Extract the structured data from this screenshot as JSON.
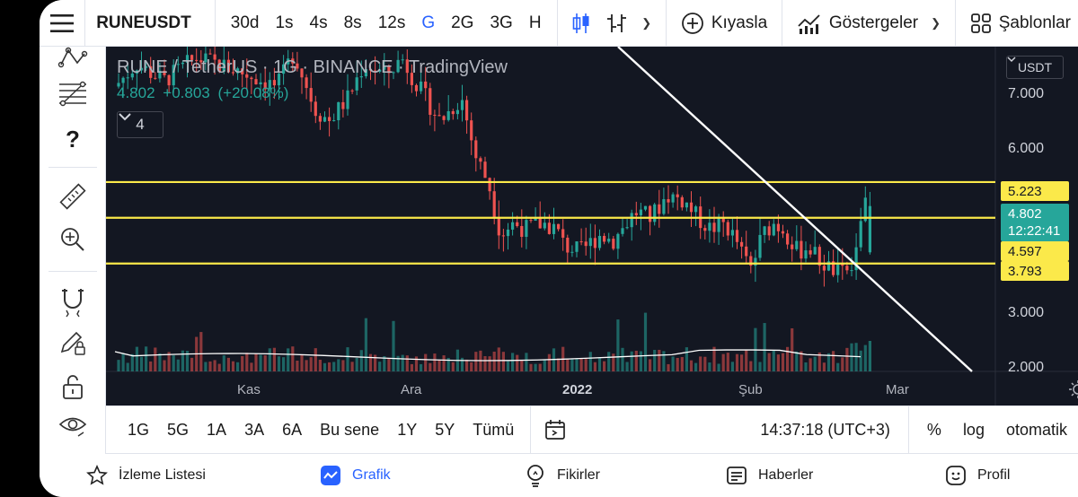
{
  "toolbar": {
    "symbol": "RUNEUSDT",
    "intervals": [
      "30d",
      "1s",
      "4s",
      "8s",
      "12s",
      "G",
      "2G",
      "3G",
      "H"
    ],
    "active_interval": "G",
    "compare_label": "Kıyasla",
    "indicators_label": "Göstergeler",
    "templates_label": "Şablonlar"
  },
  "legend": {
    "title": "RUNE / TetherUS · 1G · BINANCE · TradingView",
    "last": "4.802",
    "change": "+0.803",
    "change_pct": "(+20.08%)",
    "indicator_count": "4"
  },
  "price_axis": {
    "currency": "USDT",
    "labels": [
      "7.000",
      "6.000",
      "3.000",
      "2.000"
    ]
  },
  "price_tags": {
    "resistance_top": "5.223",
    "last_price": "4.802",
    "countdown": "12:22:41",
    "resistance_mid": "4.597",
    "support": "3.793"
  },
  "time_axis": {
    "labels": [
      {
        "text": "Kas",
        "bold": false
      },
      {
        "text": "Ara",
        "bold": false
      },
      {
        "text": "2022",
        "bold": true
      },
      {
        "text": "Şub",
        "bold": false
      },
      {
        "text": "Mar",
        "bold": false
      }
    ]
  },
  "chart_data": {
    "type": "candlestick",
    "symbol": "RUNE / TetherUS",
    "interval": "1G",
    "exchange": "BINANCE",
    "y_range": [
      1.9,
      7.6
    ],
    "horizontal_levels": [
      5.223,
      4.597,
      3.793
    ],
    "last_price": 4.802,
    "trendline": {
      "from": {
        "x": "2021-12-20",
        "y": 7.9
      },
      "to": {
        "x": "2022-03-07",
        "y": 1.9
      }
    },
    "x_ticks": [
      "Kas",
      "Ara",
      "2022",
      "Şub",
      "Mar"
    ],
    "volume_colors": {
      "up": "#26a69a",
      "down": "#ef5350"
    }
  },
  "range_bar": {
    "ranges": [
      "1G",
      "5G",
      "1A",
      "3A",
      "6A",
      "Bu sene",
      "1Y",
      "5Y",
      "Tümü"
    ],
    "time": "14:37:18 (UTC+3)",
    "percent": "%",
    "log": "log",
    "auto": "otomatik"
  },
  "bottom_nav": {
    "items": [
      {
        "label": "İzleme Listesi",
        "icon": "star-icon"
      },
      {
        "label": "Grafik",
        "icon": "chart-icon"
      },
      {
        "label": "Fikirler",
        "icon": "lightbulb-icon"
      },
      {
        "label": "Haberler",
        "icon": "news-icon"
      },
      {
        "label": "Profil",
        "icon": "smiley-icon"
      }
    ],
    "active": "Grafik"
  },
  "colors": {
    "accent": "#2962ff",
    "bull": "#26a69a",
    "bear": "#ef5350",
    "level": "#fbe94a",
    "chart_bg": "#131722"
  }
}
